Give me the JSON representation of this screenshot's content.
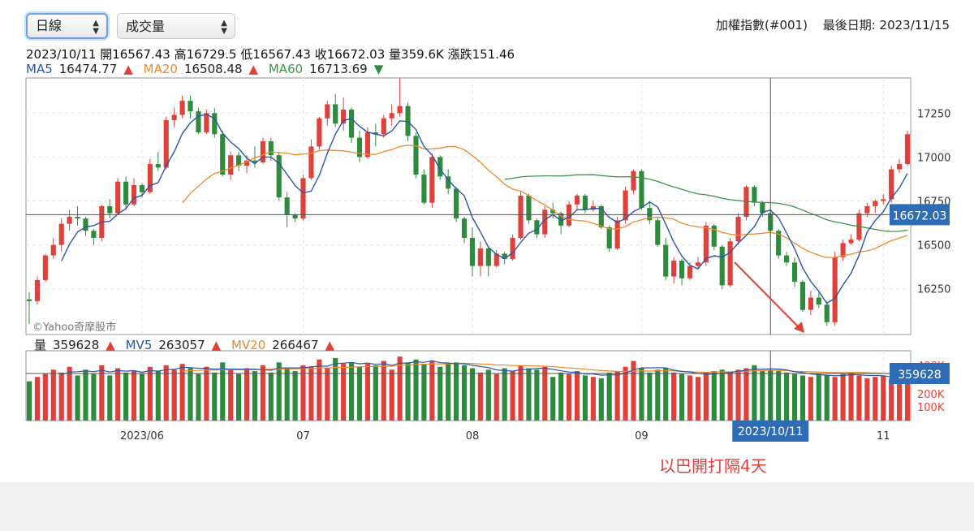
{
  "controls": {
    "period_select": "日線",
    "indicator_select": "成交量"
  },
  "header": {
    "index_name": "加權指數(#001)",
    "last_date_label": "最後日期: 2023/11/15"
  },
  "ohlc_info": "2023/10/11 開16567.43 高16729.5 低16567.43 收16672.03 量359.6K 漲跌151.46",
  "ma_legend": {
    "ma5_label": "MA5",
    "ma5_value": "16474.77",
    "ma5_trend": "▲",
    "ma20_label": "MA20",
    "ma20_value": "16508.48",
    "ma20_trend": "▲",
    "ma60_label": "MA60",
    "ma60_value": "16713.69",
    "ma60_trend": "▼"
  },
  "vol_legend": {
    "vol_label": "量",
    "vol_value": "359628",
    "vol_trend": "▲",
    "mv5_label": "MV5",
    "mv5_value": "263057",
    "mv5_trend": "▲",
    "mv20_label": "MV20",
    "mv20_value": "266467",
    "mv20_trend": "▲"
  },
  "watermark": "©Yahoo奇摩股市",
  "annotation": "以巴開打隔4天",
  "colors": {
    "up": "#e0403a",
    "down": "#2e8b3e",
    "ma5": "#2c56a8",
    "ma20": "#ee8a2a",
    "ma60": "#3f9448",
    "tag": "#2e6db5"
  },
  "chart_data": {
    "type": "candlestick",
    "price_axis": {
      "ticks": [
        16250,
        16500,
        16750,
        17000,
        17250
      ],
      "range": [
        15990,
        17450
      ]
    },
    "volume_axis": {
      "tick_labels": [
        "400K",
        "200K",
        "100K"
      ],
      "range": [
        0,
        480
      ]
    },
    "x_labels": [
      "2023/06",
      "07",
      "08",
      "09",
      "10/11",
      "11"
    ],
    "crosshair": {
      "date": "2023/10/11",
      "price_label": "16672.03",
      "volume_label": "359628"
    },
    "candles": [
      [
        16190,
        16230,
        16050,
        16180
      ],
      [
        16180,
        16320,
        16160,
        16300
      ],
      [
        16300,
        16450,
        16290,
        16440
      ],
      [
        16440,
        16540,
        16420,
        16500
      ],
      [
        16500,
        16650,
        16460,
        16620
      ],
      [
        16620,
        16700,
        16580,
        16660
      ],
      [
        16660,
        16720,
        16610,
        16650
      ],
      [
        16650,
        16660,
        16550,
        16580
      ],
      [
        16580,
        16590,
        16500,
        16540
      ],
      [
        16540,
        16730,
        16520,
        16720
      ],
      [
        16720,
        16760,
        16650,
        16680
      ],
      [
        16680,
        16880,
        16670,
        16860
      ],
      [
        16860,
        16890,
        16700,
        16730
      ],
      [
        16730,
        16880,
        16720,
        16840
      ],
      [
        16840,
        16850,
        16770,
        16800
      ],
      [
        16800,
        16990,
        16790,
        16960
      ],
      [
        16960,
        17030,
        16920,
        16940
      ],
      [
        16940,
        17230,
        16930,
        17210
      ],
      [
        17210,
        17280,
        17170,
        17240
      ],
      [
        17240,
        17350,
        17220,
        17320
      ],
      [
        17320,
        17350,
        17220,
        17260
      ],
      [
        17260,
        17280,
        17130,
        17140
      ],
      [
        17140,
        17270,
        17130,
        17250
      ],
      [
        17250,
        17280,
        17110,
        17130
      ],
      [
        17130,
        17150,
        16890,
        16900
      ],
      [
        16900,
        17030,
        16870,
        17010
      ],
      [
        17010,
        17030,
        16920,
        16950
      ],
      [
        16950,
        17010,
        16910,
        16980
      ],
      [
        16980,
        17060,
        16940,
        16970
      ],
      [
        16970,
        17110,
        16960,
        17090
      ],
      [
        17090,
        17110,
        16980,
        17010
      ],
      [
        17010,
        17030,
        16750,
        16770
      ],
      [
        16770,
        16800,
        16600,
        16670
      ],
      [
        16670,
        16680,
        16630,
        16650
      ],
      [
        16650,
        16900,
        16640,
        16880
      ],
      [
        16880,
        17100,
        16870,
        17060
      ],
      [
        17060,
        17230,
        17040,
        17220
      ],
      [
        17220,
        17320,
        17180,
        17300
      ],
      [
        17300,
        17360,
        17170,
        17190
      ],
      [
        17190,
        17340,
        17150,
        17270
      ],
      [
        17270,
        17280,
        17080,
        17110
      ],
      [
        17110,
        17150,
        16970,
        17000
      ],
      [
        17000,
        17170,
        16990,
        17140
      ],
      [
        17140,
        17190,
        17060,
        17130
      ],
      [
        17130,
        17240,
        17110,
        17220
      ],
      [
        17220,
        17300,
        17180,
        17250
      ],
      [
        17250,
        17450,
        17230,
        17290
      ],
      [
        17290,
        17310,
        17090,
        17120
      ],
      [
        17120,
        17140,
        16880,
        16900
      ],
      [
        16900,
        16930,
        16730,
        16740
      ],
      [
        16740,
        17020,
        16710,
        17000
      ],
      [
        17000,
        17010,
        16870,
        16890
      ],
      [
        16890,
        16930,
        16790,
        16820
      ],
      [
        16820,
        16830,
        16630,
        16650
      ],
      [
        16650,
        16660,
        16510,
        16540
      ],
      [
        16540,
        16600,
        16320,
        16380
      ],
      [
        16380,
        16520,
        16320,
        16480
      ],
      [
        16480,
        16490,
        16320,
        16380
      ],
      [
        16380,
        16470,
        16370,
        16450
      ],
      [
        16450,
        16460,
        16390,
        16420
      ],
      [
        16420,
        16560,
        16410,
        16540
      ],
      [
        16540,
        16800,
        16530,
        16780
      ],
      [
        16780,
        16790,
        16620,
        16640
      ],
      [
        16640,
        16650,
        16540,
        16560
      ],
      [
        16560,
        16720,
        16540,
        16700
      ],
      [
        16700,
        16740,
        16650,
        16680
      ],
      [
        16680,
        16690,
        16560,
        16610
      ],
      [
        16610,
        16750,
        16600,
        16730
      ],
      [
        16730,
        16790,
        16700,
        16780
      ],
      [
        16780,
        16790,
        16680,
        16700
      ],
      [
        16700,
        16750,
        16690,
        16720
      ],
      [
        16720,
        16730,
        16590,
        16600
      ],
      [
        16600,
        16610,
        16460,
        16480
      ],
      [
        16480,
        16660,
        16470,
        16640
      ],
      [
        16640,
        16830,
        16620,
        16810
      ],
      [
        16810,
        16930,
        16790,
        16920
      ],
      [
        16920,
        16930,
        16700,
        16710
      ],
      [
        16710,
        16750,
        16620,
        16640
      ],
      [
        16640,
        16660,
        16490,
        16500
      ],
      [
        16500,
        16540,
        16300,
        16320
      ],
      [
        16320,
        16430,
        16280,
        16410
      ],
      [
        16410,
        16420,
        16270,
        16310
      ],
      [
        16310,
        16400,
        16300,
        16380
      ],
      [
        16380,
        16430,
        16360,
        16400
      ],
      [
        16400,
        16630,
        16380,
        16610
      ],
      [
        16610,
        16620,
        16470,
        16490
      ],
      [
        16490,
        16500,
        16250,
        16270
      ],
      [
        16270,
        16540,
        16260,
        16520
      ],
      [
        16520,
        16680,
        16500,
        16660
      ],
      [
        16660,
        16840,
        16640,
        16830
      ],
      [
        16830,
        16840,
        16720,
        16740
      ],
      [
        16740,
        16750,
        16660,
        16680
      ],
      [
        16680,
        16710,
        16550,
        16580
      ],
      [
        16580,
        16590,
        16420,
        16440
      ],
      [
        16440,
        16460,
        16380,
        16400
      ],
      [
        16400,
        16430,
        16260,
        16290
      ],
      [
        16290,
        16300,
        16120,
        16130
      ],
      [
        16130,
        16240,
        16100,
        16200
      ],
      [
        16200,
        16230,
        16140,
        16160
      ],
      [
        16160,
        16180,
        16040,
        16060
      ],
      [
        16060,
        16460,
        16040,
        16430
      ],
      [
        16430,
        16530,
        16410,
        16510
      ],
      [
        16510,
        16560,
        16500,
        16530
      ],
      [
        16530,
        16700,
        16520,
        16680
      ],
      [
        16680,
        16740,
        16660,
        16720
      ],
      [
        16720,
        16760,
        16680,
        16750
      ],
      [
        16750,
        16790,
        16730,
        16760
      ],
      [
        16760,
        16950,
        16740,
        16930
      ],
      [
        16930,
        16990,
        16910,
        16960
      ],
      [
        16960,
        17150,
        16950,
        17130
      ]
    ],
    "volumes": [
      270,
      300,
      320,
      350,
      330,
      370,
      310,
      350,
      320,
      380,
      310,
      360,
      330,
      340,
      320,
      370,
      340,
      380,
      350,
      390,
      360,
      320,
      370,
      330,
      400,
      350,
      320,
      360,
      340,
      380,
      330,
      400,
      360,
      340,
      380,
      370,
      420,
      360,
      430,
      390,
      400,
      370,
      390,
      380,
      410,
      350,
      440,
      400,
      420,
      390,
      410,
      370,
      390,
      400,
      380,
      360,
      330,
      350,
      320,
      360,
      340,
      380,
      360,
      350,
      370,
      300,
      330,
      320,
      340,
      310,
      300,
      290,
      330,
      340,
      370,
      410,
      360,
      330,
      350,
      360,
      330,
      320,
      310,
      300,
      330,
      340,
      350,
      330,
      350,
      360,
      380,
      340,
      350,
      340,
      330,
      320,
      310,
      300,
      320,
      310,
      300,
      320,
      330,
      310,
      290,
      300,
      310,
      290,
      300,
      290
    ]
  }
}
